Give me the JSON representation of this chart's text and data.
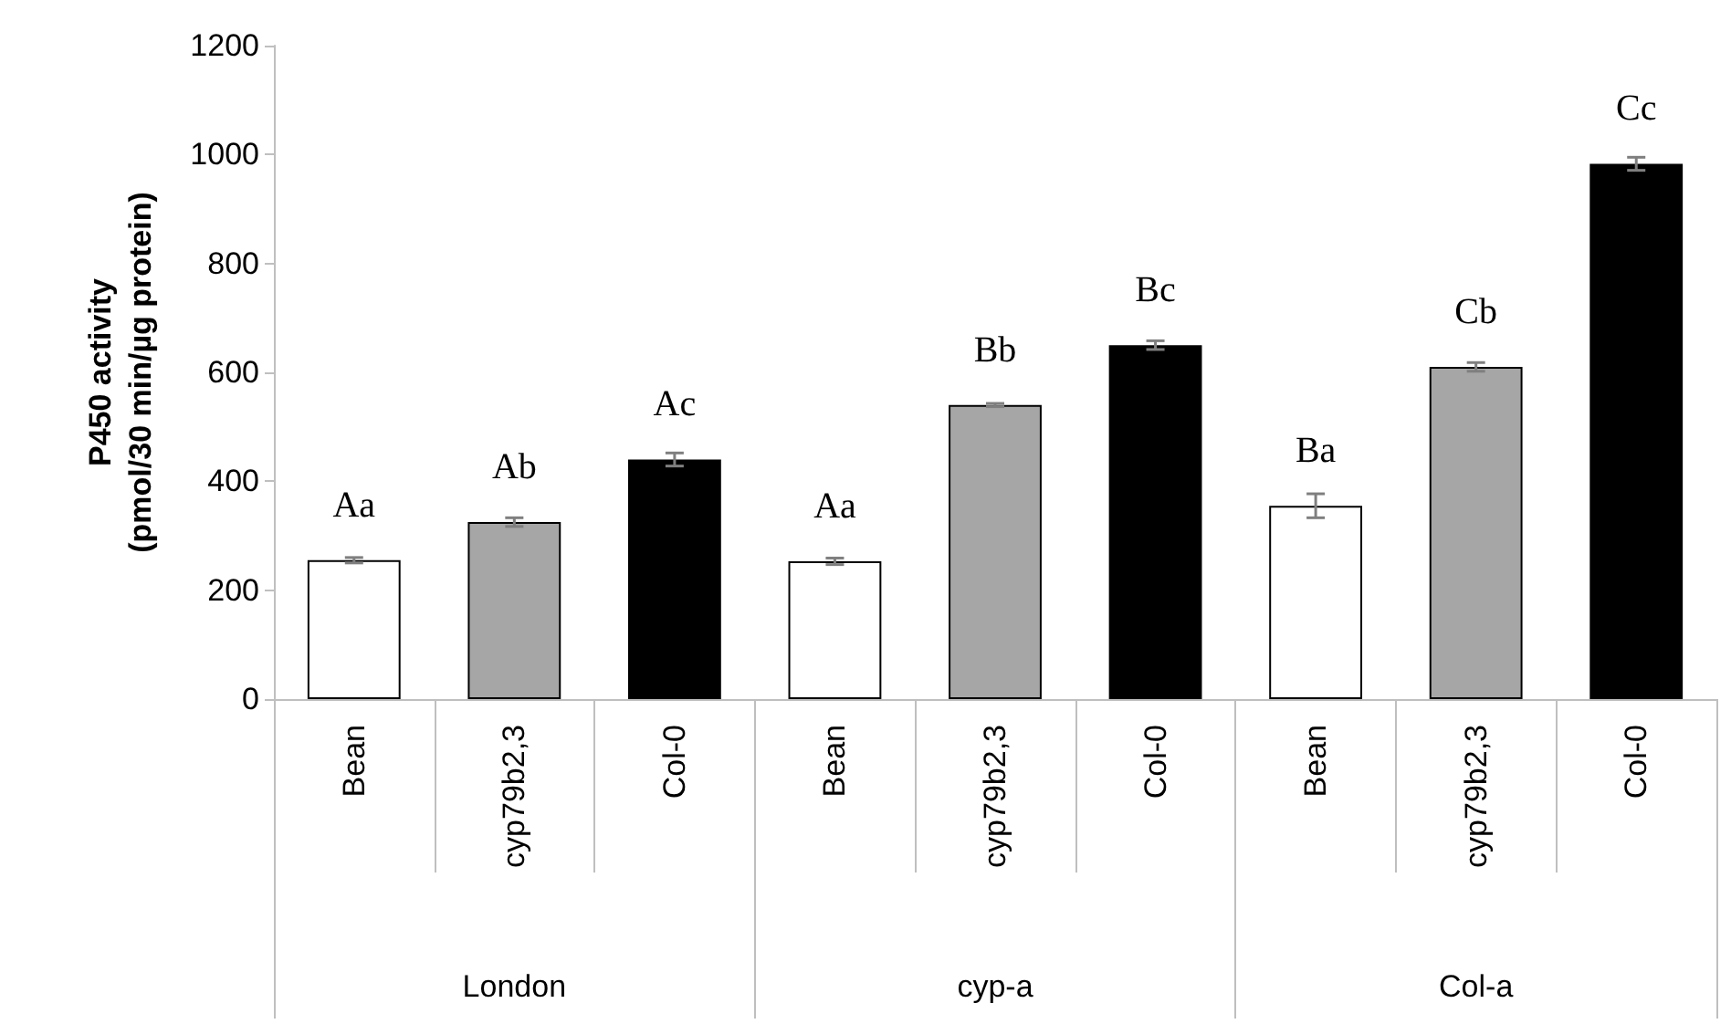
{
  "chart_data": {
    "type": "bar",
    "ylabel": "P450 activity\n(pmol/30 min/µg protein)",
    "categories": [
      "Bean",
      "cyp79b2,3",
      "Col-0",
      "Bean",
      "cyp79b2,3",
      "Col-0",
      "Bean",
      "cyp79b2,3",
      "Col-0"
    ],
    "values": [
      255,
      325,
      440,
      253,
      540,
      650,
      355,
      610,
      983
    ],
    "errors": [
      5,
      8,
      12,
      6,
      3,
      8,
      22,
      8,
      12
    ],
    "colors": [
      "#ffffff",
      "#a6a6a6",
      "#000000",
      "#ffffff",
      "#a6a6a6",
      "#000000",
      "#ffffff",
      "#a6a6a6",
      "#000000"
    ],
    "value_labels": [
      "Aa",
      "Ab",
      "Ac",
      "Aa",
      "Bb",
      "Bc",
      "Ba",
      "Cb",
      "Cc"
    ],
    "annotations": [
      "London",
      "cyp-a",
      "Col-a"
    ],
    "ylim": [
      0,
      1200
    ],
    "yticks": [
      0,
      200,
      400,
      600,
      800,
      1000,
      1200
    ],
    "grid": false
  }
}
